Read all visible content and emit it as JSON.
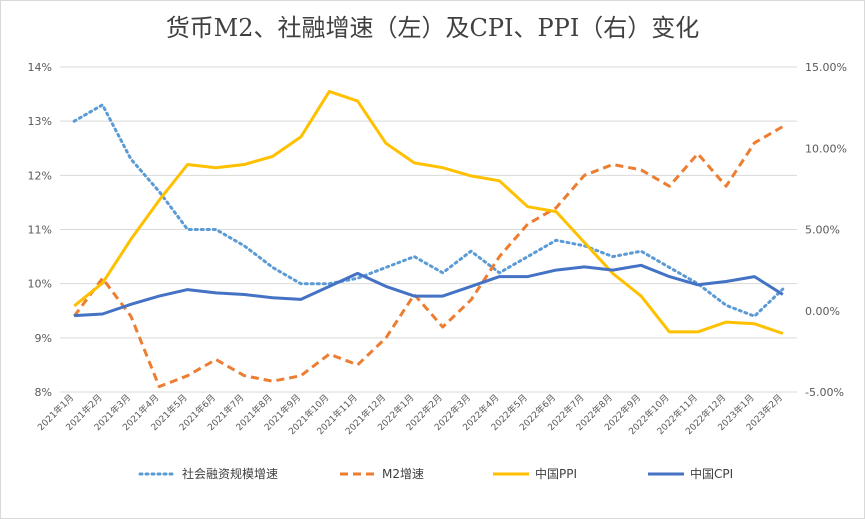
{
  "chart_data": {
    "type": "line",
    "title": "货币M2、社融增速（左）及CPI、PPI（右）变化",
    "categories": [
      "2021年1月",
      "2021年2月",
      "2021年3月",
      "2021年4月",
      "2021年5月",
      "2021年6月",
      "2021年7月",
      "2021年8月",
      "2021年9月",
      "2021年10月",
      "2021年11月",
      "2021年12月",
      "2022年1月",
      "2022年2月",
      "2022年3月",
      "2022年4月",
      "2022年5月",
      "2022年6月",
      "2022年7月",
      "2022年8月",
      "2022年9月",
      "2022年10月",
      "2022年11月",
      "2022年12月",
      "2023年1月",
      "2023年2月"
    ],
    "y_left": {
      "ylim": [
        8,
        14
      ],
      "ticks": [
        8,
        9,
        10,
        11,
        12,
        13,
        14
      ],
      "tick_labels": [
        "8%",
        "9%",
        "10%",
        "11%",
        "12%",
        "13%",
        "14%"
      ]
    },
    "y_right": {
      "ylim": [
        -5,
        15
      ],
      "ticks": [
        -5,
        0,
        5,
        10,
        15
      ],
      "tick_labels": [
        "-5.00%",
        "0.00%",
        "5.00%",
        "10.00%",
        "15.00%"
      ]
    },
    "series": [
      {
        "name": "社会融资规模增速",
        "axis": "left",
        "style": "dotted",
        "color": "#5B9BD5",
        "values": [
          13.0,
          13.3,
          12.3,
          11.7,
          11.0,
          11.0,
          10.7,
          10.3,
          10.0,
          10.0,
          10.1,
          10.3,
          10.5,
          10.2,
          10.6,
          10.2,
          10.5,
          10.8,
          10.7,
          10.5,
          10.6,
          10.3,
          10.0,
          9.6,
          9.4,
          9.9
        ]
      },
      {
        "name": "M2增速",
        "axis": "left",
        "style": "dashed",
        "color": "#ED7D31",
        "values": [
          9.4,
          10.1,
          9.4,
          8.1,
          8.3,
          8.6,
          8.3,
          8.2,
          8.3,
          8.7,
          8.5,
          9.0,
          9.8,
          9.2,
          9.7,
          10.5,
          11.1,
          11.4,
          12.0,
          12.2,
          12.1,
          11.8,
          12.4,
          11.8,
          12.6,
          12.9
        ]
      },
      {
        "name": "中国PPI",
        "axis": "right",
        "style": "solid",
        "color": "#FFC000",
        "values": [
          0.3,
          1.7,
          4.4,
          6.8,
          9.0,
          8.8,
          9.0,
          9.5,
          10.7,
          13.5,
          12.9,
          10.3,
          9.1,
          8.8,
          8.3,
          8.0,
          6.4,
          6.1,
          4.2,
          2.3,
          0.9,
          -1.3,
          -1.3,
          -0.7,
          -0.8,
          -1.4
        ]
      },
      {
        "name": "中国CPI",
        "axis": "right",
        "style": "solid",
        "color": "#4472C4",
        "values": [
          -0.3,
          -0.2,
          0.4,
          0.9,
          1.3,
          1.1,
          1.0,
          0.8,
          0.7,
          1.5,
          2.3,
          1.5,
          0.9,
          0.9,
          1.5,
          2.1,
          2.1,
          2.5,
          2.7,
          2.5,
          2.8,
          2.1,
          1.6,
          1.8,
          2.1,
          1.0
        ]
      }
    ],
    "grid": true,
    "legend": "bottom"
  }
}
